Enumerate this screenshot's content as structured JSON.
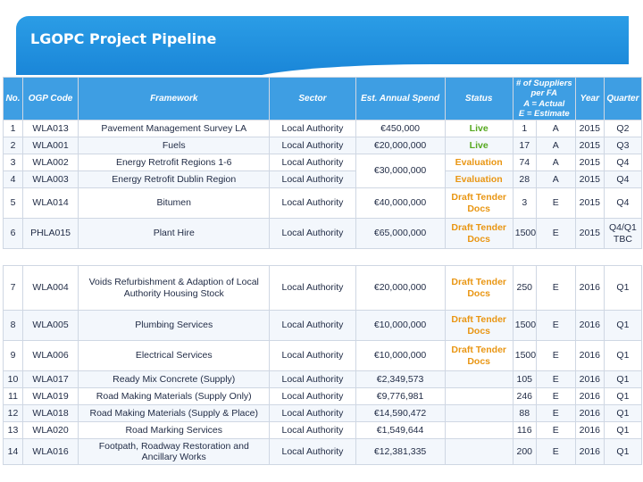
{
  "title": "LGOPC Project Pipeline",
  "headers": {
    "no": "No.",
    "ogp_code": "OGP Code",
    "framework": "Framework",
    "sector": "Sector",
    "spend": "Est. Annual Spend",
    "status": "Status",
    "suppliers_l1": "# of Suppliers per FA",
    "suppliers_l2": "A = Actual",
    "suppliers_l3": "E = Estimate",
    "year": "Year",
    "quarter": "Quarter"
  },
  "table1": [
    {
      "no": "1",
      "code": "WLA013",
      "framework": "Pavement Management Survey LA",
      "sector": "Local Authority",
      "spend": "€450,000",
      "status": "Live",
      "suppliers": "1",
      "ae": "A",
      "year": "2015",
      "quarter": "Q2"
    },
    {
      "no": "2",
      "code": "WLA001",
      "framework": "Fuels",
      "sector": "Local Authority",
      "spend": "€20,000,000",
      "status": "Live",
      "suppliers": "17",
      "ae": "A",
      "year": "2015",
      "quarter": "Q3"
    },
    {
      "no": "3",
      "code": "WLA002",
      "framework": "Energy Retrofit Regions 1-6",
      "sector": "Local Authority",
      "spend": "€30,000,000",
      "status": "Evaluation",
      "suppliers": "74",
      "ae": "A",
      "year": "2015",
      "quarter": "Q4"
    },
    {
      "no": "4",
      "code": "WLA003",
      "framework": "Energy Retrofit Dublin Region",
      "sector": "Local Authority",
      "spend": "",
      "status": "Evaluation",
      "suppliers": "28",
      "ae": "A",
      "year": "2015",
      "quarter": "Q4"
    },
    {
      "no": "5",
      "code": "WLA014",
      "framework": "Bitumen",
      "sector": "Local Authority",
      "spend": "€40,000,000",
      "status": "Draft Tender Docs",
      "suppliers": "3",
      "ae": "E",
      "year": "2015",
      "quarter": "Q4"
    },
    {
      "no": "6",
      "code": "PHLA015",
      "framework": "Plant Hire",
      "sector": "Local Authority",
      "spend": "€65,000,000",
      "status": "Draft Tender Docs",
      "suppliers": "1500",
      "ae": "E",
      "year": "2015",
      "quarter": "Q4/Q1 TBC"
    }
  ],
  "table2": [
    {
      "no": "7",
      "code": "WLA004",
      "framework": "Voids Refurbishment & Adaption of Local Authority Housing Stock",
      "sector": "Local Authority",
      "spend": "€20,000,000",
      "status": "Draft Tender Docs",
      "suppliers": "250",
      "ae": "E",
      "year": "2016",
      "quarter": "Q1"
    },
    {
      "no": "8",
      "code": "WLA005",
      "framework": "Plumbing Services",
      "sector": "Local Authority",
      "spend": "€10,000,000",
      "status": "Draft Tender Docs",
      "suppliers": "1500",
      "ae": "E",
      "year": "2016",
      "quarter": "Q1"
    },
    {
      "no": "9",
      "code": "WLA006",
      "framework": "Electrical Services",
      "sector": "Local Authority",
      "spend": "€10,000,000",
      "status": "Draft Tender Docs",
      "suppliers": "1500",
      "ae": "E",
      "year": "2016",
      "quarter": "Q1"
    },
    {
      "no": "10",
      "code": "WLA017",
      "framework": "Ready Mix Concrete (Supply)",
      "sector": "Local Authority",
      "spend": "€2,349,573",
      "status": "",
      "suppliers": "105",
      "ae": "E",
      "year": "2016",
      "quarter": "Q1"
    },
    {
      "no": "11",
      "code": "WLA019",
      "framework": "Road Making Materials (Supply Only)",
      "sector": "Local Authority",
      "spend": "€9,776,981",
      "status": "",
      "suppliers": "246",
      "ae": "E",
      "year": "2016",
      "quarter": "Q1"
    },
    {
      "no": "12",
      "code": "WLA018",
      "framework": "Road Making Materials (Supply & Place)",
      "sector": "Local Authority",
      "spend": "€14,590,472",
      "status": "",
      "suppliers": "88",
      "ae": "E",
      "year": "2016",
      "quarter": "Q1"
    },
    {
      "no": "13",
      "code": "WLA020",
      "framework": "Road Marking Services",
      "sector": "Local Authority",
      "spend": "€1,549,644",
      "status": "",
      "suppliers": "116",
      "ae": "E",
      "year": "2016",
      "quarter": "Q1"
    },
    {
      "no": "14",
      "code": "WLA016",
      "framework": "Footpath, Roadway Restoration and Ancillary Works",
      "sector": "Local Authority",
      "spend": "€12,381,335",
      "status": "",
      "suppliers": "200",
      "ae": "E",
      "year": "2016",
      "quarter": "Q1"
    }
  ]
}
